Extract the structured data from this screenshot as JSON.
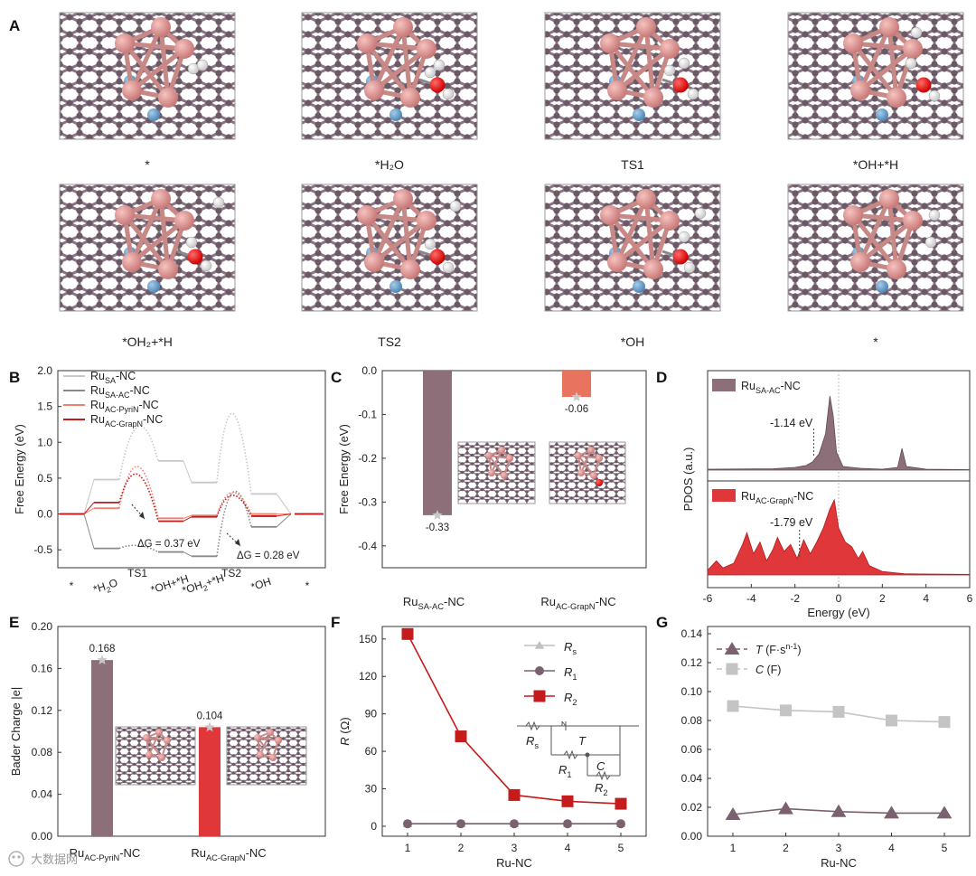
{
  "panels": {
    "A": "A",
    "B": "B",
    "C": "C",
    "D": "D",
    "E": "E",
    "F": "F",
    "G": "G"
  },
  "panel_a": {
    "captions": [
      "*",
      "*H₂O",
      "TS1",
      "*OH+*H",
      "*OH₂+*H",
      "TS2",
      "*OH",
      "*"
    ]
  },
  "watermark": "大数据网",
  "colors": {
    "mauve": "#8c6f79",
    "red": "#e0373a",
    "salmon": "#e8735f",
    "lightgray": "#c8c8c8",
    "darkred": "#c21a1a",
    "gray": "#8a8a8a"
  },
  "chart_data": [
    {
      "panel": "B",
      "type": "line",
      "xlabel": "",
      "ylabel": "Free Energy (eV)",
      "ylim": [
        -0.75,
        2.0
      ],
      "yticks": [
        "-0.5",
        "0.0",
        "0.5",
        "1.0",
        "1.5",
        "2.0"
      ],
      "categories": [
        "*",
        "*H₂O",
        "TS1",
        "*OH+*H",
        "*OH₂+*H",
        "TS2",
        "*OH",
        "*"
      ],
      "series": [
        {
          "name_main": "Ru",
          "name_sub": "SA",
          "name_tail": "-NC",
          "color": "#c8c8c8",
          "values": [
            0,
            0.48,
            1.22,
            0.74,
            0.44,
            1.4,
            0.28,
            0
          ]
        },
        {
          "name_main": "Ru",
          "name_sub": "SA-AC",
          "name_tail": "-NC",
          "color": "#8a8a8a",
          "values": [
            0,
            -0.48,
            -0.44,
            -0.53,
            -0.59,
            0.3,
            -0.18,
            0
          ]
        },
        {
          "name_main": "Ru",
          "name_sub": "AC-PyriN",
          "name_tail": "-NC",
          "color": "#f08070",
          "values": [
            0,
            0.08,
            0.66,
            -0.06,
            -0.02,
            0.3,
            0.0,
            0
          ]
        },
        {
          "name_main": "Ru",
          "name_sub": "AC-GrapN",
          "name_tail": "-NC",
          "color": "#c21a1a",
          "values": [
            0,
            0.16,
            0.55,
            -0.1,
            -0.04,
            0.26,
            -0.03,
            0
          ]
        }
      ],
      "annotations": [
        "ΔG = 0.37 eV",
        "ΔG = 0.28 eV"
      ]
    },
    {
      "panel": "C",
      "type": "bar",
      "ylabel": "Free Energy (eV)",
      "ylim": [
        -0.45,
        0.0
      ],
      "yticks": [
        "0.0",
        "-0.1",
        "-0.2",
        "-0.3",
        "-0.4"
      ],
      "categories": [
        {
          "main": "Ru",
          "sub": "SA-AC",
          "tail": "-NC"
        },
        {
          "main": "Ru",
          "sub": "AC-GrapN",
          "tail": "-NC"
        }
      ],
      "values": [
        -0.33,
        -0.06
      ],
      "value_labels": [
        "-0.33",
        "-0.06"
      ],
      "colors": [
        "#8c6f79",
        "#e8735f"
      ]
    },
    {
      "panel": "D",
      "type": "area",
      "xlabel": "Energy (eV)",
      "ylabel": "PDOS (a.u.)",
      "xlim": [
        -6,
        6
      ],
      "xticks": [
        "-6",
        "-4",
        "-2",
        "0",
        "2",
        "4",
        "6"
      ],
      "series": [
        {
          "name_main": "Ru",
          "name_sub": "SA-AC",
          "name_tail": "-NC",
          "color": "#8c6f79",
          "d_band_center": "-1.14 eV"
        },
        {
          "name_main": "Ru",
          "name_sub": "AC-GrapN",
          "name_tail": "-NC",
          "color": "#e0373a",
          "d_band_center": "-1.79 eV"
        }
      ]
    },
    {
      "panel": "E",
      "type": "bar",
      "ylabel": "Bader Charge |e|",
      "ylim": [
        0.0,
        0.2
      ],
      "yticks": [
        "0.00",
        "0.04",
        "0.08",
        "0.12",
        "0.16",
        "0.20"
      ],
      "categories": [
        {
          "main": "Ru",
          "sub": "AC-PyriN",
          "tail": "-NC"
        },
        {
          "main": "Ru",
          "sub": "AC-GrapN",
          "tail": "-NC"
        }
      ],
      "values": [
        0.168,
        0.104
      ],
      "value_labels": [
        "0.168",
        "0.104"
      ],
      "colors": [
        "#8c6f79",
        "#e0373a"
      ]
    },
    {
      "panel": "F",
      "type": "line",
      "xlabel": "Ru-NC",
      "ylabel": "R (Ω)",
      "x": [
        1,
        2,
        3,
        4,
        5
      ],
      "xticks": [
        "1",
        "2",
        "3",
        "4",
        "5"
      ],
      "ylim": [
        -8,
        160
      ],
      "yticks": [
        "0",
        "30",
        "60",
        "90",
        "120",
        "150"
      ],
      "series": [
        {
          "name": "R",
          "sub": "s",
          "color": "#c0c0c0",
          "marker": "triangle",
          "values": [
            2,
            2,
            2,
            2,
            2
          ]
        },
        {
          "name": "R",
          "sub": "1",
          "color": "#7b6070",
          "marker": "circle",
          "values": [
            2,
            2,
            2,
            2,
            2
          ]
        },
        {
          "name": "R",
          "sub": "2",
          "color": "#c41c1c",
          "marker": "square",
          "values": [
            154,
            72,
            25,
            20,
            18
          ]
        }
      ],
      "inset_labels": {
        "rs": "R",
        "rs_sub": "s",
        "t": "T",
        "r1": "R",
        "r1_sub": "1",
        "c": "C",
        "r2": "R",
        "r2_sub": "2"
      }
    },
    {
      "panel": "G",
      "type": "line",
      "xlabel": "Ru-NC",
      "ylabel": "",
      "x": [
        1,
        2,
        3,
        4,
        5
      ],
      "xticks": [
        "1",
        "2",
        "3",
        "4",
        "5"
      ],
      "ylim": [
        0.0,
        0.145
      ],
      "yticks": [
        "0.00",
        "0.02",
        "0.04",
        "0.06",
        "0.08",
        "0.10",
        "0.12",
        "0.14"
      ],
      "series": [
        {
          "name": "T",
          "unit": "(F·s",
          "unit_sup": "n-1",
          "unit_end": ")",
          "color": "#7b6070",
          "marker": "triangle",
          "values": [
            0.015,
            0.019,
            0.017,
            0.016,
            0.016
          ]
        },
        {
          "name": "C",
          "unit": "(F)",
          "color": "#c4c4c4",
          "marker": "square",
          "values": [
            0.09,
            0.087,
            0.086,
            0.08,
            0.079
          ]
        }
      ]
    }
  ]
}
